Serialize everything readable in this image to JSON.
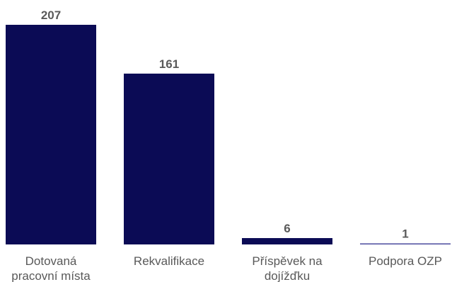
{
  "chart_data": {
    "type": "bar",
    "categories": [
      [
        "Dotovaná",
        "pracovní místa"
      ],
      [
        "Rekvalifikace"
      ],
      [
        "Příspěvek na",
        "dojížďku"
      ],
      [
        "Podpora OZP"
      ]
    ],
    "values": [
      207,
      161,
      6,
      1
    ],
    "value_labels": [
      "207",
      "161",
      "6",
      "1"
    ],
    "title": "",
    "xlabel": "",
    "ylabel": "",
    "ylim": [
      0,
      207
    ],
    "grid": false,
    "legend": "none",
    "colors": {
      "bar": "#0b0b55",
      "text": "#595959"
    }
  }
}
